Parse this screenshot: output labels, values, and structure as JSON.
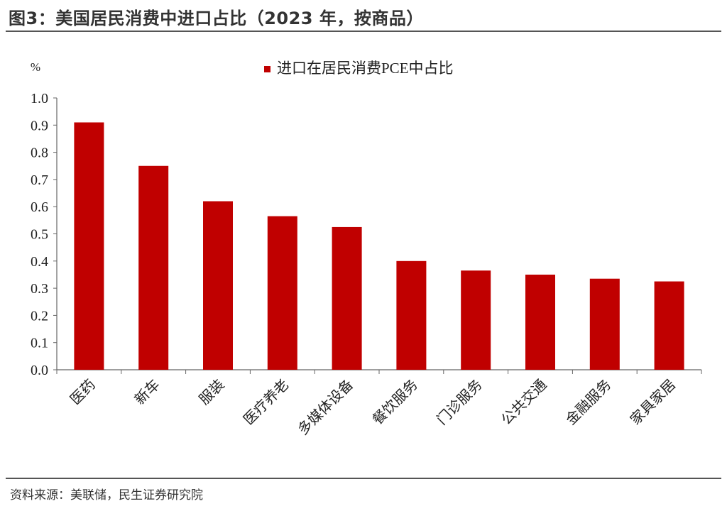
{
  "title": "图3：美国居民消费中进口占比（2023 年，按商品）",
  "source": "资料来源：美联储，民生证券研究院",
  "chart_data": {
    "type": "bar",
    "title": "",
    "ylabel": "%",
    "xlabel": "",
    "ylim": [
      0,
      1.0
    ],
    "yticks": [
      "0.0",
      "0.1",
      "0.2",
      "0.3",
      "0.4",
      "0.5",
      "0.6",
      "0.7",
      "0.8",
      "0.9",
      "1.0"
    ],
    "categories": [
      "医药",
      "新车",
      "服装",
      "医疗养老",
      "多媒体设备",
      "餐饮服务",
      "门诊服务",
      "公共交通",
      "金融服务",
      "家具家居"
    ],
    "series": [
      {
        "name": "进口在居民消费PCE中占比",
        "color": "#c00000",
        "values": [
          0.91,
          0.75,
          0.62,
          0.565,
          0.525,
          0.4,
          0.365,
          0.35,
          0.335,
          0.325
        ]
      }
    ],
    "legend": "top-center",
    "grid": false
  }
}
